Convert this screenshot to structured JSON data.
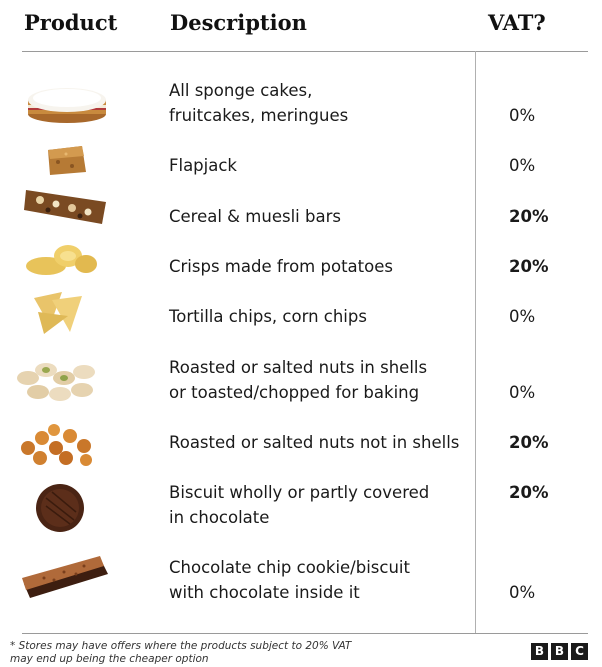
{
  "header": {
    "product": "Product",
    "description": "Description",
    "vat": "VAT?"
  },
  "rows": [
    {
      "image": "sponge-cake",
      "lines": [
        "All sponge cakes,",
        "fruitcakes, meringues"
      ],
      "vat": "0%"
    },
    {
      "image": "flapjack",
      "lines": [
        "Flapjack"
      ],
      "vat": "0%"
    },
    {
      "image": "cereal-bar",
      "lines": [
        "Cereal & muesli bars"
      ],
      "vat": "20%"
    },
    {
      "image": "potato-crisps",
      "lines": [
        "Crisps made from potatoes"
      ],
      "vat": "20%"
    },
    {
      "image": "tortilla-chips",
      "lines": [
        "Tortilla chips, corn chips"
      ],
      "vat": "0%"
    },
    {
      "image": "pistachios",
      "lines": [
        "Roasted or salted nuts in shells",
        "or toasted/chopped for baking"
      ],
      "vat": "0%"
    },
    {
      "image": "peanuts",
      "lines": [
        "Roasted or salted nuts not in shells"
      ],
      "vat": "20%"
    },
    {
      "image": "chocolate-biscuit",
      "lines": [
        "Biscuit wholly or partly covered",
        "in chocolate"
      ],
      "vat": "20%"
    },
    {
      "image": "cookie-sandwich",
      "lines": [
        "Chocolate chip cookie/biscuit",
        "with chocolate inside it"
      ],
      "vat": "0%"
    }
  ],
  "footnote": {
    "line1": "* Stores may have offers where the products subject to 20% VAT",
    "line2": "may end up being the cheaper option"
  },
  "logo": {
    "letters": [
      "B",
      "B",
      "C"
    ]
  }
}
